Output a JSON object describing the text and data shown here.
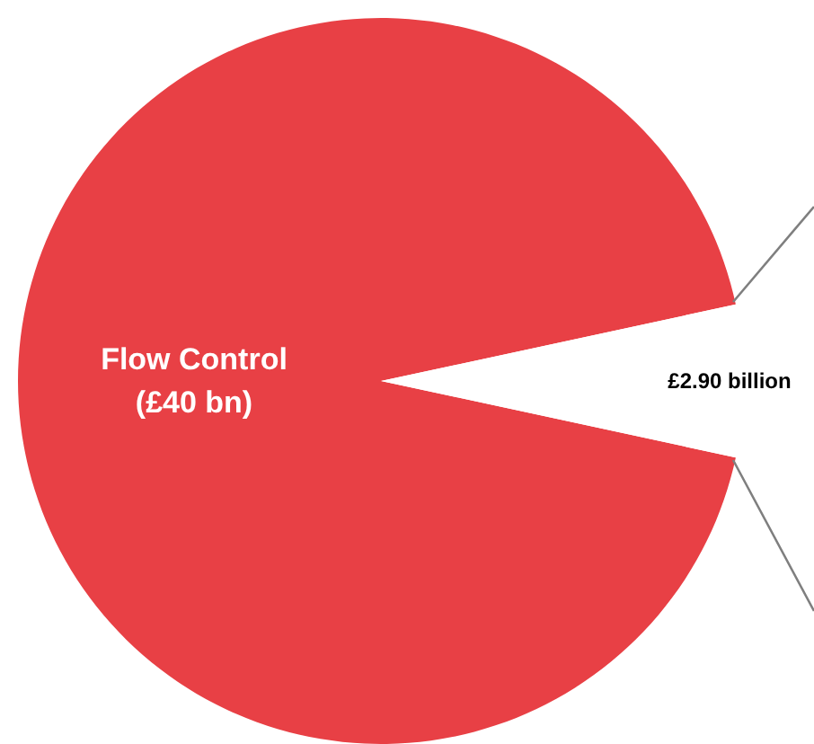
{
  "chart_data": {
    "type": "pie",
    "categories": [
      "Flow Control",
      null
    ],
    "values": [
      40,
      2.9
    ],
    "colors": [
      "#e84045",
      "#ffffff"
    ],
    "value_labels": [
      "(£40 bn)",
      "£2.90 billion"
    ]
  }
}
